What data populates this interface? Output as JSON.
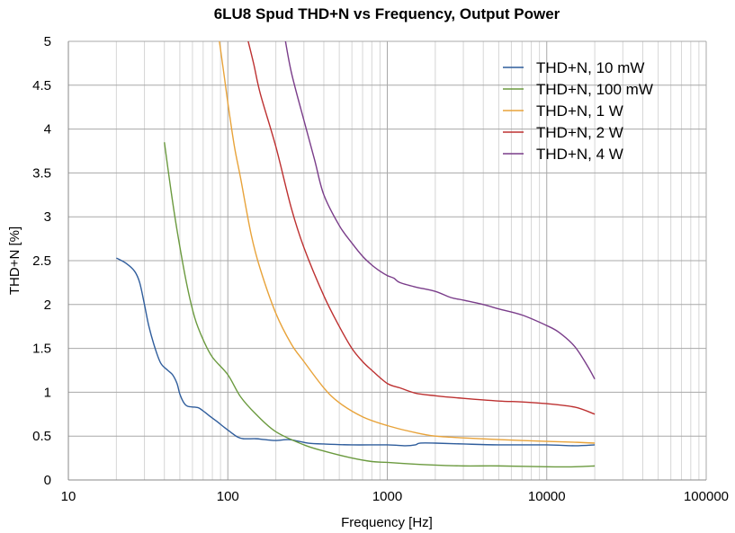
{
  "chart_data": {
    "type": "line",
    "title": "6LU8 Spud THD+N vs Frequency, Output Power",
    "xlabel": "Frequency [Hz]",
    "ylabel": "THD+N [%]",
    "xscale": "log",
    "xlim": [
      10,
      100000
    ],
    "ylim": [
      0,
      5
    ],
    "grid": true,
    "legend_position": "top-right",
    "x_tick_labels": [
      "10",
      "100",
      "1000",
      "10000",
      "100000"
    ],
    "y_tick_labels": [
      "0",
      "0.5",
      "1",
      "1.5",
      "2",
      "2.5",
      "3",
      "3.5",
      "4",
      "4.5",
      "5"
    ],
    "series": [
      {
        "name": "THD+N, 10 mW",
        "color": "#2f5d9c",
        "points": [
          [
            20,
            2.53
          ],
          [
            23,
            2.47
          ],
          [
            26,
            2.38
          ],
          [
            28,
            2.25
          ],
          [
            30,
            2.0
          ],
          [
            32,
            1.75
          ],
          [
            35,
            1.5
          ],
          [
            38,
            1.33
          ],
          [
            42,
            1.25
          ],
          [
            45,
            1.2
          ],
          [
            48,
            1.1
          ],
          [
            50,
            0.98
          ],
          [
            53,
            0.88
          ],
          [
            56,
            0.84
          ],
          [
            62,
            0.83
          ],
          [
            66,
            0.82
          ],
          [
            72,
            0.77
          ],
          [
            78,
            0.72
          ],
          [
            85,
            0.67
          ],
          [
            95,
            0.6
          ],
          [
            105,
            0.54
          ],
          [
            115,
            0.49
          ],
          [
            125,
            0.47
          ],
          [
            150,
            0.47
          ],
          [
            170,
            0.46
          ],
          [
            200,
            0.45
          ],
          [
            240,
            0.46
          ],
          [
            280,
            0.44
          ],
          [
            320,
            0.42
          ],
          [
            400,
            0.41
          ],
          [
            600,
            0.4
          ],
          [
            1000,
            0.4
          ],
          [
            1300,
            0.39
          ],
          [
            1500,
            0.4
          ],
          [
            1600,
            0.42
          ],
          [
            2000,
            0.42
          ],
          [
            3000,
            0.41
          ],
          [
            5000,
            0.4
          ],
          [
            10000,
            0.4
          ],
          [
            15000,
            0.39
          ],
          [
            20000,
            0.4
          ]
        ]
      },
      {
        "name": "THD+N, 100 mW",
        "color": "#6b9a3f",
        "points": [
          [
            40,
            3.85
          ],
          [
            44,
            3.3
          ],
          [
            48,
            2.85
          ],
          [
            55,
            2.25
          ],
          [
            62,
            1.85
          ],
          [
            70,
            1.6
          ],
          [
            80,
            1.4
          ],
          [
            100,
            1.2
          ],
          [
            120,
            0.95
          ],
          [
            150,
            0.75
          ],
          [
            200,
            0.55
          ],
          [
            300,
            0.4
          ],
          [
            400,
            0.33
          ],
          [
            600,
            0.25
          ],
          [
            800,
            0.21
          ],
          [
            1000,
            0.2
          ],
          [
            1500,
            0.18
          ],
          [
            2000,
            0.17
          ],
          [
            3000,
            0.16
          ],
          [
            5000,
            0.16
          ],
          [
            10000,
            0.15
          ],
          [
            15000,
            0.15
          ],
          [
            20000,
            0.16
          ]
        ]
      },
      {
        "name": "THD+N, 1 W",
        "color": "#e8a33a",
        "points": [
          [
            87,
            5.1
          ],
          [
            95,
            4.6
          ],
          [
            100,
            4.3
          ],
          [
            110,
            3.8
          ],
          [
            120,
            3.45
          ],
          [
            140,
            2.8
          ],
          [
            160,
            2.4
          ],
          [
            200,
            1.9
          ],
          [
            250,
            1.55
          ],
          [
            300,
            1.35
          ],
          [
            400,
            1.05
          ],
          [
            500,
            0.88
          ],
          [
            700,
            0.72
          ],
          [
            1000,
            0.62
          ],
          [
            1500,
            0.54
          ],
          [
            2000,
            0.5
          ],
          [
            3000,
            0.48
          ],
          [
            5000,
            0.46
          ],
          [
            10000,
            0.44
          ],
          [
            15000,
            0.43
          ],
          [
            20000,
            0.42
          ]
        ]
      },
      {
        "name": "THD+N, 2 W",
        "color": "#bd3131",
        "points": [
          [
            130,
            5.1
          ],
          [
            145,
            4.75
          ],
          [
            160,
            4.4
          ],
          [
            200,
            3.8
          ],
          [
            250,
            3.1
          ],
          [
            300,
            2.65
          ],
          [
            400,
            2.1
          ],
          [
            500,
            1.75
          ],
          [
            600,
            1.5
          ],
          [
            700,
            1.35
          ],
          [
            800,
            1.25
          ],
          [
            1000,
            1.1
          ],
          [
            1200,
            1.05
          ],
          [
            1500,
            0.99
          ],
          [
            2000,
            0.96
          ],
          [
            3000,
            0.93
          ],
          [
            5000,
            0.9
          ],
          [
            7000,
            0.89
          ],
          [
            10000,
            0.87
          ],
          [
            15000,
            0.83
          ],
          [
            20000,
            0.75
          ]
        ]
      },
      {
        "name": "THD+N, 4 W",
        "color": "#7a3d8a",
        "points": [
          [
            225,
            5.1
          ],
          [
            250,
            4.65
          ],
          [
            300,
            4.1
          ],
          [
            350,
            3.65
          ],
          [
            400,
            3.25
          ],
          [
            500,
            2.9
          ],
          [
            600,
            2.7
          ],
          [
            700,
            2.55
          ],
          [
            800,
            2.45
          ],
          [
            900,
            2.38
          ],
          [
            1000,
            2.33
          ],
          [
            1100,
            2.3
          ],
          [
            1200,
            2.25
          ],
          [
            1500,
            2.2
          ],
          [
            2000,
            2.15
          ],
          [
            2500,
            2.08
          ],
          [
            3000,
            2.05
          ],
          [
            4000,
            2.0
          ],
          [
            5000,
            1.95
          ],
          [
            7000,
            1.88
          ],
          [
            10000,
            1.76
          ],
          [
            12000,
            1.68
          ],
          [
            15000,
            1.52
          ],
          [
            18000,
            1.3
          ],
          [
            20000,
            1.15
          ]
        ]
      }
    ]
  }
}
